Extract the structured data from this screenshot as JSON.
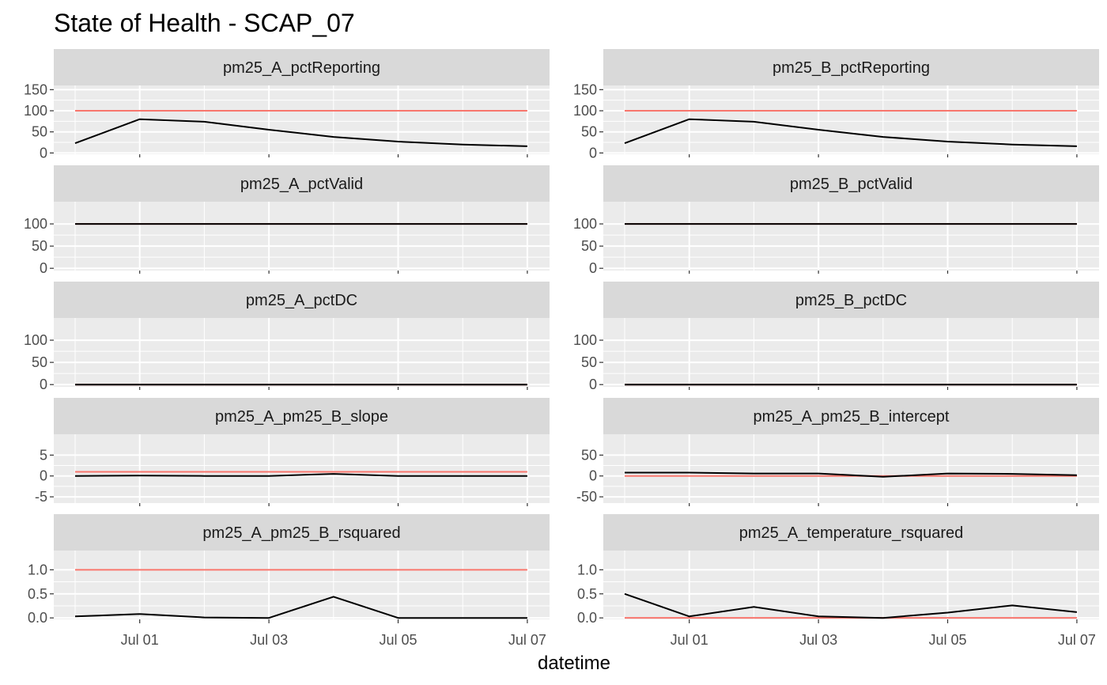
{
  "chart_data": {
    "type": "line",
    "title": "State of Health - SCAP_07",
    "xlabel": "datetime",
    "ylabel": "",
    "grid": true,
    "colors": {
      "value": "#000000",
      "reference": "#F8766D",
      "panel_bg": "#EBEBEB",
      "strip_bg": "#D9D9D9",
      "grid": "#FFFFFF"
    },
    "x": [
      "Jun 30",
      "Jul 01",
      "Jul 02",
      "Jul 03",
      "Jul 04",
      "Jul 05",
      "Jul 06",
      "Jul 07"
    ],
    "x_ticks": [
      "Jul 01",
      "Jul 03",
      "Jul 05",
      "Jul 07"
    ],
    "panels": [
      {
        "name": "pm25_A_pctReporting",
        "ylim": [
          -3,
          160
        ],
        "yticks": [
          "0",
          "50",
          "100",
          "150"
        ],
        "ytick_values": [
          0,
          50,
          100,
          150
        ],
        "reference": 100,
        "values": [
          23,
          80,
          74,
          55,
          38,
          27,
          20,
          16
        ]
      },
      {
        "name": "pm25_B_pctReporting",
        "ylim": [
          -3,
          160
        ],
        "yticks": [
          "0",
          "50",
          "100",
          "150"
        ],
        "ytick_values": [
          0,
          50,
          100,
          150
        ],
        "reference": 100,
        "values": [
          23,
          80,
          74,
          55,
          38,
          27,
          20,
          16
        ]
      },
      {
        "name": "pm25_A_pctValid",
        "ylim": [
          -5,
          150
        ],
        "yticks": [
          "0",
          "50",
          "100"
        ],
        "ytick_values": [
          0,
          50,
          100
        ],
        "reference": 100,
        "values": [
          100,
          100,
          100,
          100,
          100,
          100,
          100,
          100
        ]
      },
      {
        "name": "pm25_B_pctValid",
        "ylim": [
          -5,
          150
        ],
        "yticks": [
          "0",
          "50",
          "100"
        ],
        "ytick_values": [
          0,
          50,
          100
        ],
        "reference": 100,
        "values": [
          100,
          100,
          100,
          100,
          100,
          100,
          100,
          100
        ]
      },
      {
        "name": "pm25_A_pctDC",
        "ylim": [
          -5,
          150
        ],
        "yticks": [
          "0",
          "50",
          "100"
        ],
        "ytick_values": [
          0,
          50,
          100
        ],
        "reference": 0,
        "values": [
          0,
          0,
          0,
          0,
          0,
          0,
          0,
          0
        ]
      },
      {
        "name": "pm25_B_pctDC",
        "ylim": [
          -5,
          150
        ],
        "yticks": [
          "0",
          "50",
          "100"
        ],
        "ytick_values": [
          0,
          50,
          100
        ],
        "reference": 0,
        "values": [
          0,
          0,
          0,
          0,
          0,
          0,
          0,
          0
        ]
      },
      {
        "name": "pm25_A_pm25_B_slope",
        "ylim": [
          -6.5,
          10
        ],
        "yticks": [
          "-5",
          "0",
          "5"
        ],
        "ytick_values": [
          -5,
          0,
          5
        ],
        "reference": 1,
        "values": [
          0,
          0.1,
          0,
          0,
          0.5,
          0,
          0,
          0
        ]
      },
      {
        "name": "pm25_A_pm25_B_intercept",
        "ylim": [
          -65,
          100
        ],
        "yticks": [
          "-50",
          "0",
          "50"
        ],
        "ytick_values": [
          -50,
          0,
          50
        ],
        "reference": 0,
        "values": [
          8,
          8,
          6,
          6,
          -2,
          6,
          5,
          2
        ]
      },
      {
        "name": "pm25_A_pm25_B_rsquared",
        "ylim": [
          -0.03,
          1.4
        ],
        "yticks": [
          "0.0",
          "0.5",
          "1.0"
        ],
        "ytick_values": [
          0,
          0.5,
          1.0
        ],
        "reference": 1.0,
        "values": [
          0.03,
          0.08,
          0.01,
          0.0,
          0.44,
          0.0,
          0.0,
          0.0
        ]
      },
      {
        "name": "pm25_A_temperature_rsquared",
        "ylim": [
          -0.03,
          1.4
        ],
        "yticks": [
          "0.0",
          "0.5",
          "1.0"
        ],
        "ytick_values": [
          0,
          0.5,
          1.0
        ],
        "reference": 0,
        "values": [
          0.5,
          0.03,
          0.23,
          0.03,
          0.0,
          0.11,
          0.26,
          0.12
        ]
      }
    ]
  }
}
